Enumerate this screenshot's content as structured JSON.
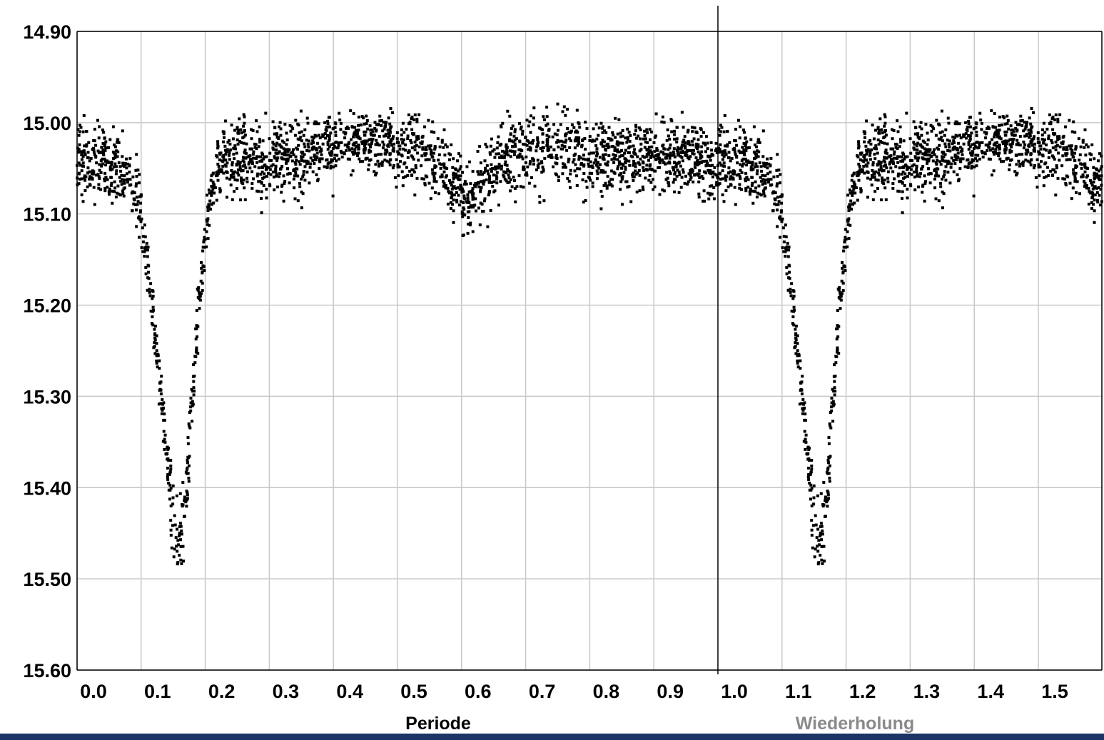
{
  "chart_data": {
    "type": "scatter",
    "title": "",
    "xlabel": "Periode",
    "xlabel_repeat": "Wiederholung",
    "ylabel": "",
    "xlim": [
      0.0,
      1.6
    ],
    "ylim": [
      15.6,
      14.9
    ],
    "y_inverted": true,
    "grid": true,
    "x_ticks": [
      "0.0",
      "0.1",
      "0.2",
      "0.3",
      "0.4",
      "0.5",
      "0.6",
      "0.7",
      "0.8",
      "0.9",
      "1.0",
      "1.1",
      "1.2",
      "1.3",
      "1.4",
      "1.5"
    ],
    "y_ticks": [
      "14.90",
      "15.00",
      "15.10",
      "15.20",
      "15.30",
      "15.40",
      "15.50",
      "15.60"
    ],
    "period_repeat_marker": 1.0,
    "series": [
      {
        "color": "#000000",
        "marker": "square",
        "x": [
          0.0,
          0.01,
          0.02,
          0.03,
          0.04,
          0.05,
          0.06,
          0.07,
          0.08,
          0.09,
          0.1,
          0.11,
          0.12,
          0.13,
          0.14,
          0.15,
          0.16,
          0.17,
          0.18,
          0.19,
          0.2,
          0.21,
          0.22,
          0.23,
          0.24,
          0.25,
          0.26,
          0.27,
          0.28,
          0.29,
          0.3,
          0.31,
          0.32,
          0.33,
          0.34,
          0.35,
          0.36,
          0.37,
          0.38,
          0.39,
          0.4,
          0.41,
          0.42,
          0.43,
          0.44,
          0.45,
          0.46,
          0.47,
          0.48,
          0.49,
          0.5,
          0.51,
          0.52,
          0.53,
          0.54,
          0.55,
          0.56,
          0.57,
          0.58,
          0.59,
          0.6,
          0.61,
          0.62,
          0.63,
          0.64,
          0.65,
          0.66,
          0.67,
          0.68,
          0.69,
          0.7,
          0.71,
          0.72,
          0.73,
          0.74,
          0.75,
          0.76,
          0.77,
          0.78,
          0.79,
          0.8,
          0.81,
          0.82,
          0.83,
          0.84,
          0.85,
          0.86,
          0.87,
          0.88,
          0.89,
          0.9,
          0.91,
          0.92,
          0.93,
          0.94,
          0.95,
          0.96,
          0.97,
          0.98,
          0.99
        ],
        "y": [
          15.05,
          15.04,
          15.04,
          15.04,
          15.04,
          15.05,
          15.05,
          15.05,
          15.06,
          15.07,
          15.1,
          15.16,
          15.22,
          15.29,
          15.36,
          15.43,
          15.46,
          15.4,
          15.3,
          15.2,
          15.12,
          15.07,
          15.05,
          15.04,
          15.04,
          15.04,
          15.04,
          15.04,
          15.04,
          15.04,
          15.04,
          15.04,
          15.04,
          15.04,
          15.04,
          15.04,
          15.04,
          15.03,
          15.03,
          15.03,
          15.03,
          15.02,
          15.02,
          15.02,
          15.02,
          15.02,
          15.02,
          15.02,
          15.02,
          15.02,
          15.03,
          15.03,
          15.03,
          15.03,
          15.03,
          15.04,
          15.04,
          15.05,
          15.06,
          15.07,
          15.08,
          15.09,
          15.08,
          15.07,
          15.06,
          15.05,
          15.04,
          15.04,
          15.03,
          15.03,
          15.03,
          15.03,
          15.03,
          15.03,
          15.03,
          15.03,
          15.03,
          15.03,
          15.03,
          15.04,
          15.04,
          15.04,
          15.04,
          15.04,
          15.04,
          15.04,
          15.04,
          15.04,
          15.04,
          15.04,
          15.04,
          15.04,
          15.04,
          15.04,
          15.04,
          15.04,
          15.04,
          15.04,
          15.04,
          15.05
        ],
        "scatter_spread": [
          0.04,
          0.04,
          0.04,
          0.04,
          0.04,
          0.04,
          0.04,
          0.04,
          0.04,
          0.04,
          0.03,
          0.03,
          0.03,
          0.03,
          0.04,
          0.05,
          0.05,
          0.04,
          0.03,
          0.03,
          0.03,
          0.03,
          0.03,
          0.03,
          0.04,
          0.04,
          0.04,
          0.04,
          0.04,
          0.04,
          0.04,
          0.04,
          0.04,
          0.04,
          0.04,
          0.04,
          0.04,
          0.04,
          0.04,
          0.04,
          0.04,
          0.03,
          0.03,
          0.03,
          0.03,
          0.03,
          0.03,
          0.03,
          0.03,
          0.03,
          0.03,
          0.04,
          0.04,
          0.04,
          0.04,
          0.04,
          0.04,
          0.04,
          0.04,
          0.04,
          0.04,
          0.04,
          0.04,
          0.04,
          0.04,
          0.04,
          0.04,
          0.04,
          0.04,
          0.04,
          0.04,
          0.04,
          0.04,
          0.04,
          0.04,
          0.04,
          0.04,
          0.04,
          0.04,
          0.04,
          0.04,
          0.04,
          0.04,
          0.04,
          0.04,
          0.04,
          0.04,
          0.04,
          0.04,
          0.04,
          0.04,
          0.04,
          0.04,
          0.04,
          0.04,
          0.04,
          0.04,
          0.04,
          0.04,
          0.04
        ]
      }
    ]
  },
  "colors": {
    "background": "#ffffff",
    "grid": "#c8c8c8",
    "marker": "#000000",
    "frame": "#000000",
    "xlabel": "#000000",
    "xlabel_repeat": "#8a8a8a",
    "footer_bar": "#1c3466"
  }
}
